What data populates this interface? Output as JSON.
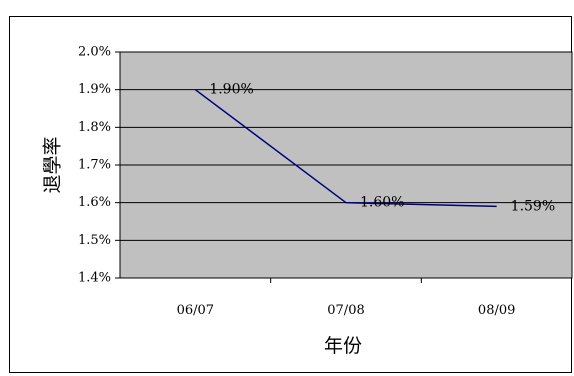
{
  "chart_data": {
    "type": "line",
    "title": "",
    "xlabel": "年份",
    "ylabel": "退學率",
    "categories": [
      "06/07",
      "07/08",
      "08/09"
    ],
    "series": [
      {
        "values": [
          1.9,
          1.6,
          1.59
        ],
        "labels": [
          "1.90%",
          "1.60%",
          "1.59%"
        ]
      }
    ],
    "y_ticks": [
      "1.4%",
      "1.5%",
      "1.6%",
      "1.7%",
      "1.8%",
      "1.9%",
      "2.0%"
    ],
    "ylim": [
      1.4,
      2.0
    ],
    "grid": true,
    "legend": "none",
    "colors": {
      "plot_bg": "#c0c0c0",
      "line": "#000080",
      "grid": "#000000"
    }
  }
}
